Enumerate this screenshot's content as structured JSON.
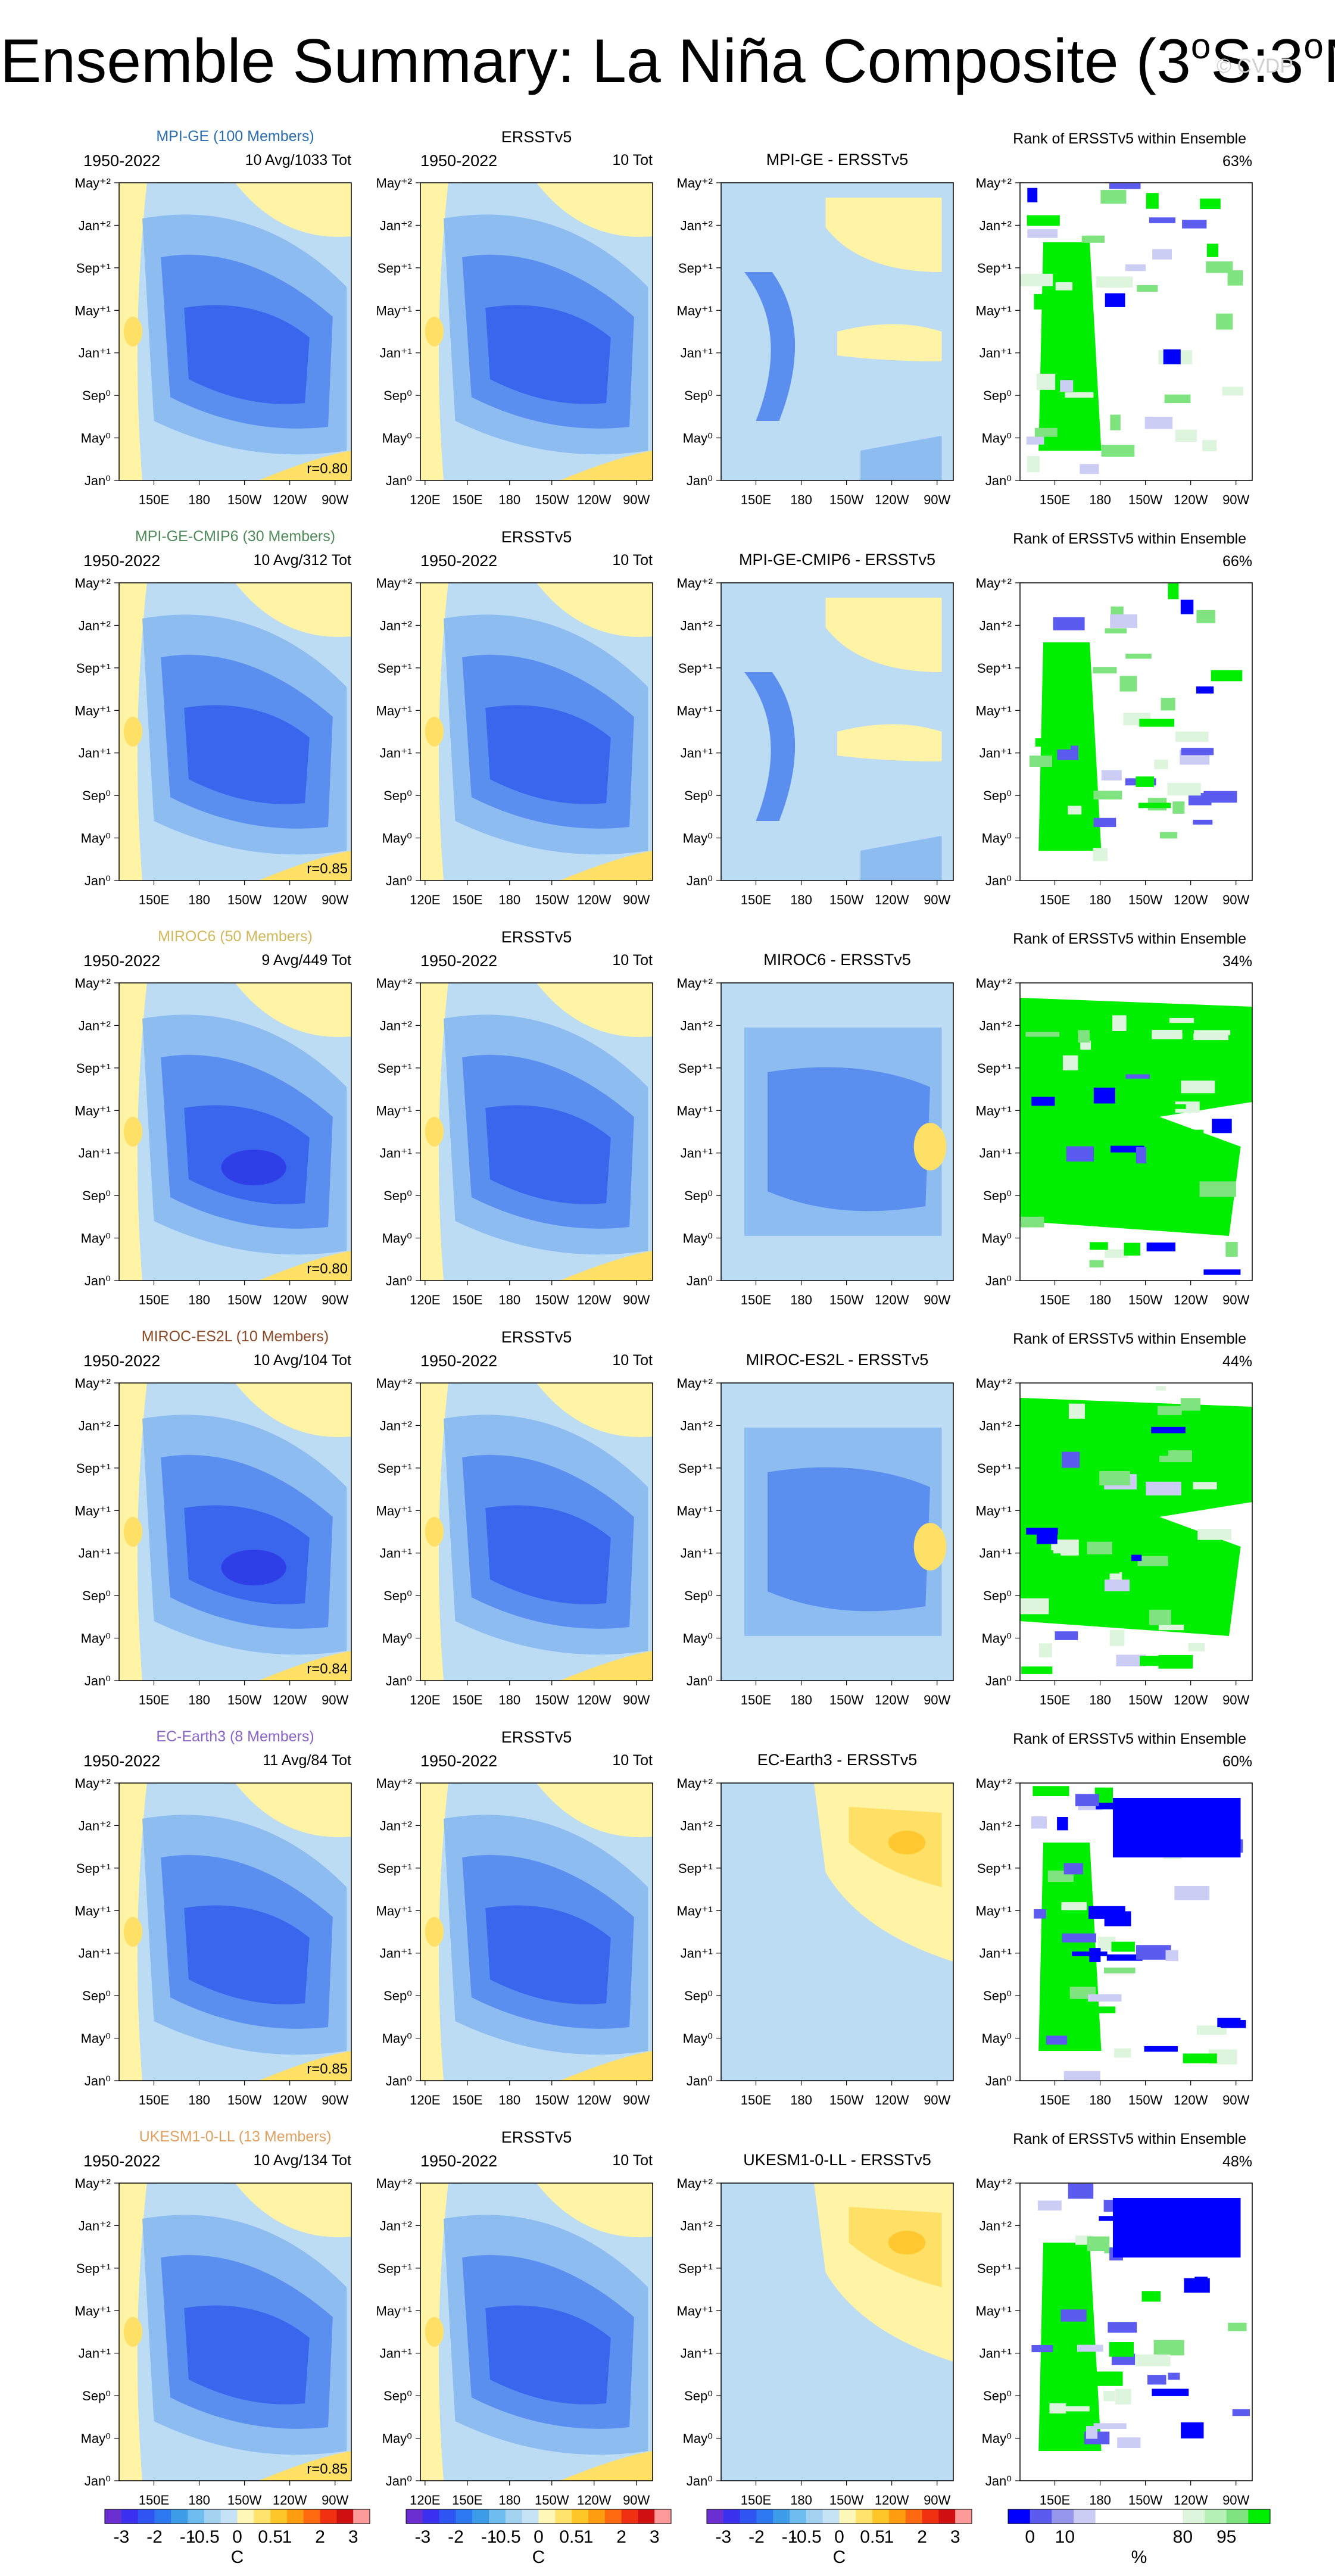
{
  "title": {
    "main": "Ensemble Summary: La Niña Composite (3",
    "deg1": "o",
    "mid": "S:3",
    "deg2": "o",
    "end": "N)"
  },
  "watermark": "© CVDP",
  "chart_data": {
    "type": "heatmap",
    "description_keys": [
      "rows",
      "colorbars"
    ],
    "period": "1950-2022",
    "y_ticks": [
      "May⁺²",
      "Jan⁺²",
      "Sep⁺¹",
      "May⁺¹",
      "Jan⁺¹",
      "Sep⁰",
      "May⁰",
      "Jan⁰"
    ],
    "x_ticks_model": [
      "150E",
      "180",
      "150W",
      "120W",
      "90W"
    ],
    "x_ticks_obs": [
      "120E",
      "150E",
      "180",
      "150W",
      "120W",
      "90W"
    ],
    "rows": [
      {
        "model": "MPI-GE (100 Members)",
        "color": "#2a6eb0",
        "avg": "10 Avg/1033 Tot",
        "r": "r=0.80",
        "obs": "ERSSTv5",
        "obs_count": "10 Tot",
        "diff": "MPI-GE - ERSSTv5",
        "rank_title": "Rank of ERSSTv5 within Ensemble",
        "rank_pct": "63%"
      },
      {
        "model": "MPI-GE-CMIP6 (30 Members)",
        "color": "#4f8a5a",
        "avg": "10 Avg/312 Tot",
        "r": "r=0.85",
        "obs": "ERSSTv5",
        "obs_count": "10 Tot",
        "diff": "MPI-GE-CMIP6 - ERSSTv5",
        "rank_title": "Rank of ERSSTv5 within Ensemble",
        "rank_pct": "66%"
      },
      {
        "model": "MIROC6 (50 Members)",
        "color": "#d2b85a",
        "avg": "9 Avg/449 Tot",
        "r": "r=0.80",
        "obs": "ERSSTv5",
        "obs_count": "10 Tot",
        "diff": "MIROC6 - ERSSTv5",
        "rank_title": "Rank of ERSSTv5 within Ensemble",
        "rank_pct": "34%"
      },
      {
        "model": "MIROC-ES2L (10 Members)",
        "color": "#8b4a25",
        "avg": "10 Avg/104 Tot",
        "r": "r=0.84",
        "obs": "ERSSTv5",
        "obs_count": "10 Tot",
        "diff": "MIROC-ES2L - ERSSTv5",
        "rank_title": "Rank of ERSSTv5 within Ensemble",
        "rank_pct": "44%"
      },
      {
        "model": "EC-Earth3 (8 Members)",
        "color": "#8a63c8",
        "avg": "11 Avg/84 Tot",
        "r": "r=0.85",
        "obs": "ERSSTv5",
        "obs_count": "10 Tot",
        "diff": "EC-Earth3 - ERSSTv5",
        "rank_title": "Rank of ERSSTv5 within Ensemble",
        "rank_pct": "60%"
      },
      {
        "model": "UKESM1-0-LL (13 Members)",
        "color": "#e0a060",
        "avg": "10 Avg/134 Tot",
        "r": "r=0.85",
        "obs": "ERSSTv5",
        "obs_count": "10 Tot",
        "diff": "UKESM1-0-LL - ERSSTv5",
        "rank_title": "Rank of ERSSTv5 within Ensemble",
        "rank_pct": "48%"
      }
    ],
    "colorbars": {
      "temp": {
        "labels": [
          "-3",
          "-2",
          "-1",
          "-0.5",
          "0",
          "0.5",
          "1",
          "2",
          "3"
        ],
        "unit": "C",
        "colors": [
          "#6b2ed0",
          "#3b2ff0",
          "#2e55f2",
          "#2b78f0",
          "#3c9ce8",
          "#6cbcef",
          "#a2d2f0",
          "#c5e3f5",
          "#fff7b8",
          "#ffe36a",
          "#ffc628",
          "#ff9c10",
          "#ff6a10",
          "#f03010",
          "#d01010",
          "#ff9a9a"
        ]
      },
      "rank": {
        "labels": [
          "0",
          "10",
          "80",
          "95"
        ],
        "unit": "%",
        "colors": [
          "#0000ff",
          "#5b5bf0",
          "#9595ec",
          "#cccdf5",
          "#ffffff",
          "#ffffff",
          "#ffffff",
          "#ffffff",
          "#ddf5dd",
          "#b5f0b5",
          "#7fe47f",
          "#00ee00"
        ]
      }
    }
  }
}
